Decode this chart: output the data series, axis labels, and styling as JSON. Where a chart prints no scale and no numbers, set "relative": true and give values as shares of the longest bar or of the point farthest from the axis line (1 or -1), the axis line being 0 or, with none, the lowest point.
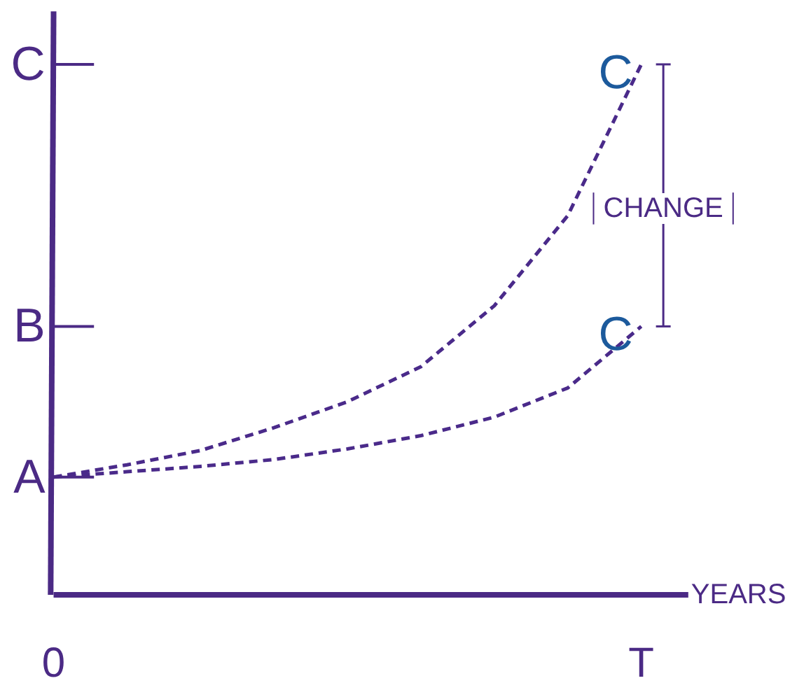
{
  "chart_data": {
    "type": "line",
    "relative": true,
    "xlabel": "YEARS",
    "categories": [
      "0",
      null,
      null,
      null,
      null,
      null,
      null,
      null,
      "T"
    ],
    "series": [
      {
        "color": "#4a2a8a",
        "values": [
          0.222,
          0.245,
          0.272,
          0.315,
          0.364,
          0.43,
          0.545,
          0.715,
          1.0
        ]
      },
      {
        "color": "#4a2a8a",
        "values": [
          0.222,
          0.232,
          0.242,
          0.255,
          0.275,
          0.3,
          0.335,
          0.39,
          0.506
        ]
      }
    ],
    "annotations": [
      "A",
      "B",
      "C",
      {
        "text": "C",
        "x": "T",
        "y": 1.0
      },
      {
        "text": "C",
        "x": "T",
        "y": 0.506
      },
      "CHANGE"
    ],
    "line_style": "dashed",
    "marker": "none",
    "grid": false
  }
}
